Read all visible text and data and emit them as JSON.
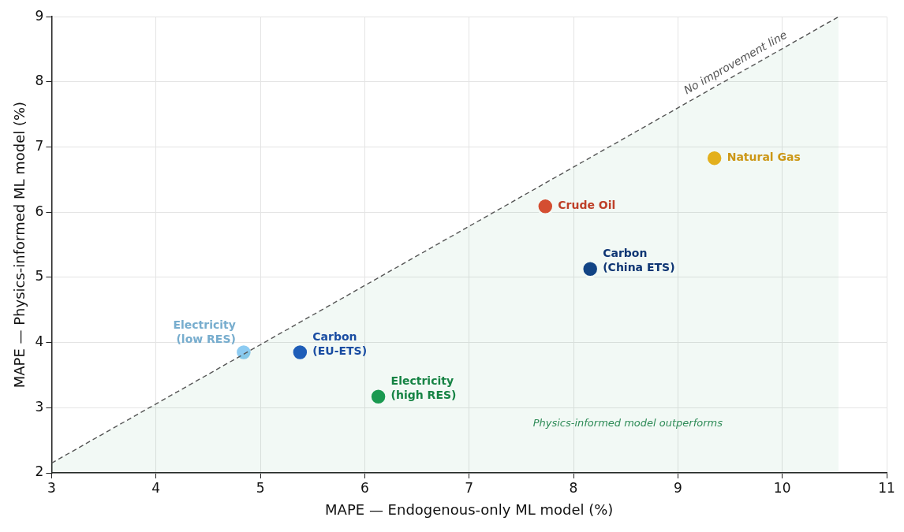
{
  "chart_data": {
    "type": "scatter",
    "xlabel": "MAPE — Endogenous-only ML model (%)",
    "ylabel": "MAPE — Physics-informed ML model (%)",
    "xlim": [
      3,
      11
    ],
    "xticks": [
      3,
      4,
      5,
      6,
      7,
      8,
      9,
      10,
      11
    ],
    "ylim": [
      2,
      9
    ],
    "yticks": [
      2,
      3,
      4,
      5,
      6,
      7,
      8,
      9
    ],
    "grid": true,
    "legend": false,
    "marker": "circle",
    "series": [
      {
        "name": "No improvement line",
        "type": "area",
        "color": "#555555",
        "line_style": "dashed",
        "marker": "none",
        "x": [
          3,
          10.54
        ],
        "values": [
          2.15,
          9
        ]
      },
      {
        "name": "Electricity (low RES)",
        "color": "#8ccbf2",
        "x": [
          4.84
        ],
        "values": [
          3.85
        ]
      },
      {
        "name": "Carbon (EU-ETS)",
        "color": "#1f5bbf",
        "x": [
          5.38
        ],
        "values": [
          3.85
        ]
      },
      {
        "name": "Electricity (high RES)",
        "color": "#1a9a50",
        "x": [
          6.13
        ],
        "values": [
          3.17
        ]
      },
      {
        "name": "Crude Oil",
        "color": "#e04a2f",
        "x": [
          7.73
        ],
        "values": [
          6.09
        ]
      },
      {
        "name": "Carbon (China ETS)",
        "color": "#123f88",
        "x": [
          8.16
        ],
        "values": [
          5.13
        ]
      },
      {
        "name": "Natural Gas",
        "color": "#f0b21a",
        "x": [
          9.35
        ],
        "values": [
          6.83
        ]
      }
    ],
    "annotations": [
      "Physics-informed model outperforms"
    ]
  }
}
